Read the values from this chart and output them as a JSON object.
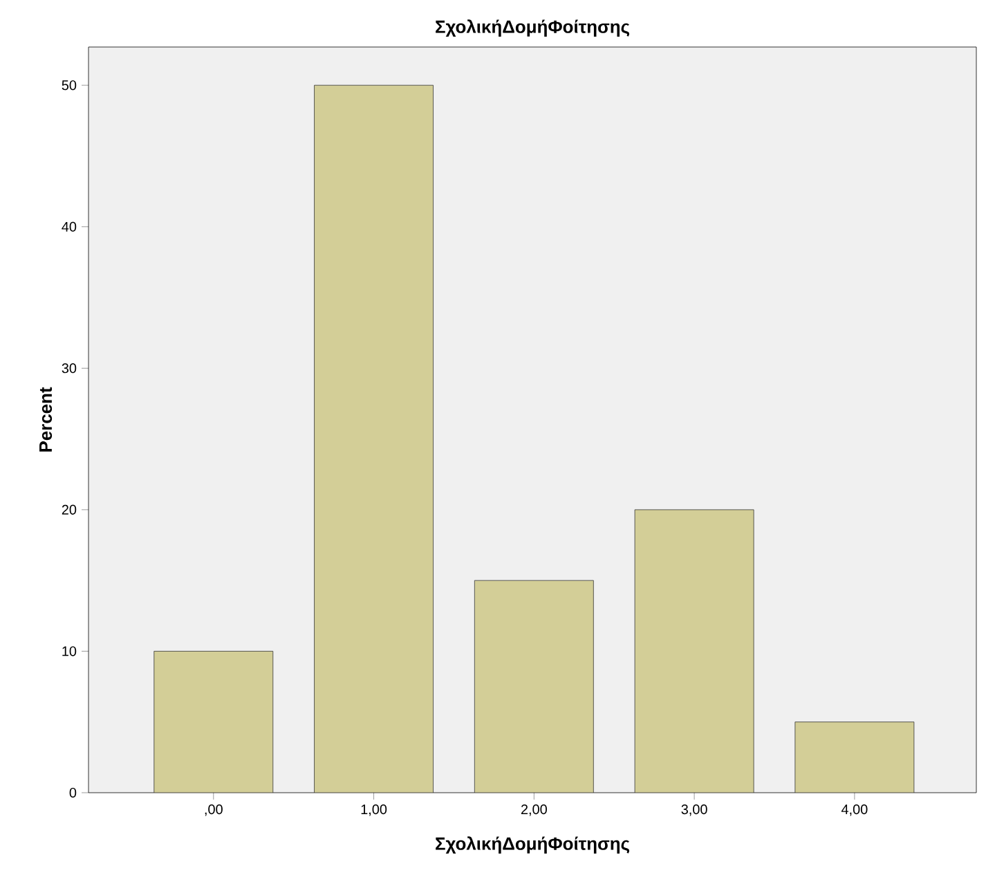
{
  "chart_data": {
    "type": "bar",
    "title": "ΣχολικήΔομήΦοίτησης",
    "xlabel": "ΣχολικήΔομήΦοίτησης",
    "ylabel": "Percent",
    "categories": [
      ",00",
      "1,00",
      "2,00",
      "3,00",
      "4,00"
    ],
    "values": [
      10,
      50,
      15,
      20,
      5
    ],
    "color": "#d3ce97",
    "ylim": [
      0,
      52.7
    ],
    "yticks": [
      0,
      10,
      20,
      30,
      40,
      50
    ],
    "grid": false
  }
}
